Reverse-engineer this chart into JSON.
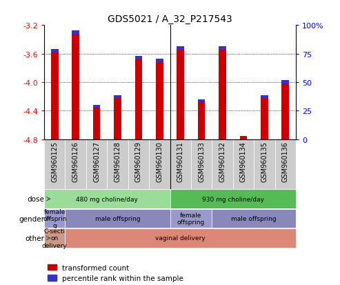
{
  "title": "GDS5021 / A_32_P217543",
  "samples": [
    "GSM960125",
    "GSM960126",
    "GSM960127",
    "GSM960128",
    "GSM960129",
    "GSM960130",
    "GSM960131",
    "GSM960133",
    "GSM960132",
    "GSM960134",
    "GSM960135",
    "GSM960136"
  ],
  "red_values": [
    -3.58,
    -3.32,
    -4.35,
    -4.22,
    -3.68,
    -3.72,
    -3.55,
    -4.27,
    -3.55,
    -4.77,
    -4.22,
    -4.02
  ],
  "blue_values": [
    0.048,
    0.048,
    0.032,
    0.038,
    0.048,
    0.044,
    0.048,
    0.032,
    0.048,
    0.014,
    0.038,
    0.048
  ],
  "ymin": -4.8,
  "ymax": -3.2,
  "yticks": [
    -4.8,
    -4.4,
    -4.0,
    -3.6,
    -3.2
  ],
  "right_ytick_labels": [
    "0",
    "25",
    "50",
    "75",
    "100%"
  ],
  "bar_color": "#cc0000",
  "blue_color": "#3333cc",
  "col_bg_color": "#cccccc",
  "dose_row": [
    {
      "label": "480 mg choline/day",
      "start": 0,
      "end": 6,
      "color": "#99dd99"
    },
    {
      "label": "930 mg choline/day",
      "start": 6,
      "end": 12,
      "color": "#55bb55"
    }
  ],
  "gender_row": [
    {
      "label": "female\noffsprin\ng",
      "start": 0,
      "end": 1,
      "color": "#9999cc"
    },
    {
      "label": "male offspring",
      "start": 1,
      "end": 6,
      "color": "#8888bb"
    },
    {
      "label": "female\noffspring",
      "start": 6,
      "end": 8,
      "color": "#9999cc"
    },
    {
      "label": "male offspring",
      "start": 8,
      "end": 12,
      "color": "#8888bb"
    }
  ],
  "other_row": [
    {
      "label": "C-secti\non\ndelivery",
      "start": 0,
      "end": 1,
      "color": "#cc9988"
    },
    {
      "label": "vaginal delivery",
      "start": 1,
      "end": 12,
      "color": "#dd8877"
    }
  ],
  "legend_red": "transformed count",
  "legend_blue": "percentile rank within the sample"
}
